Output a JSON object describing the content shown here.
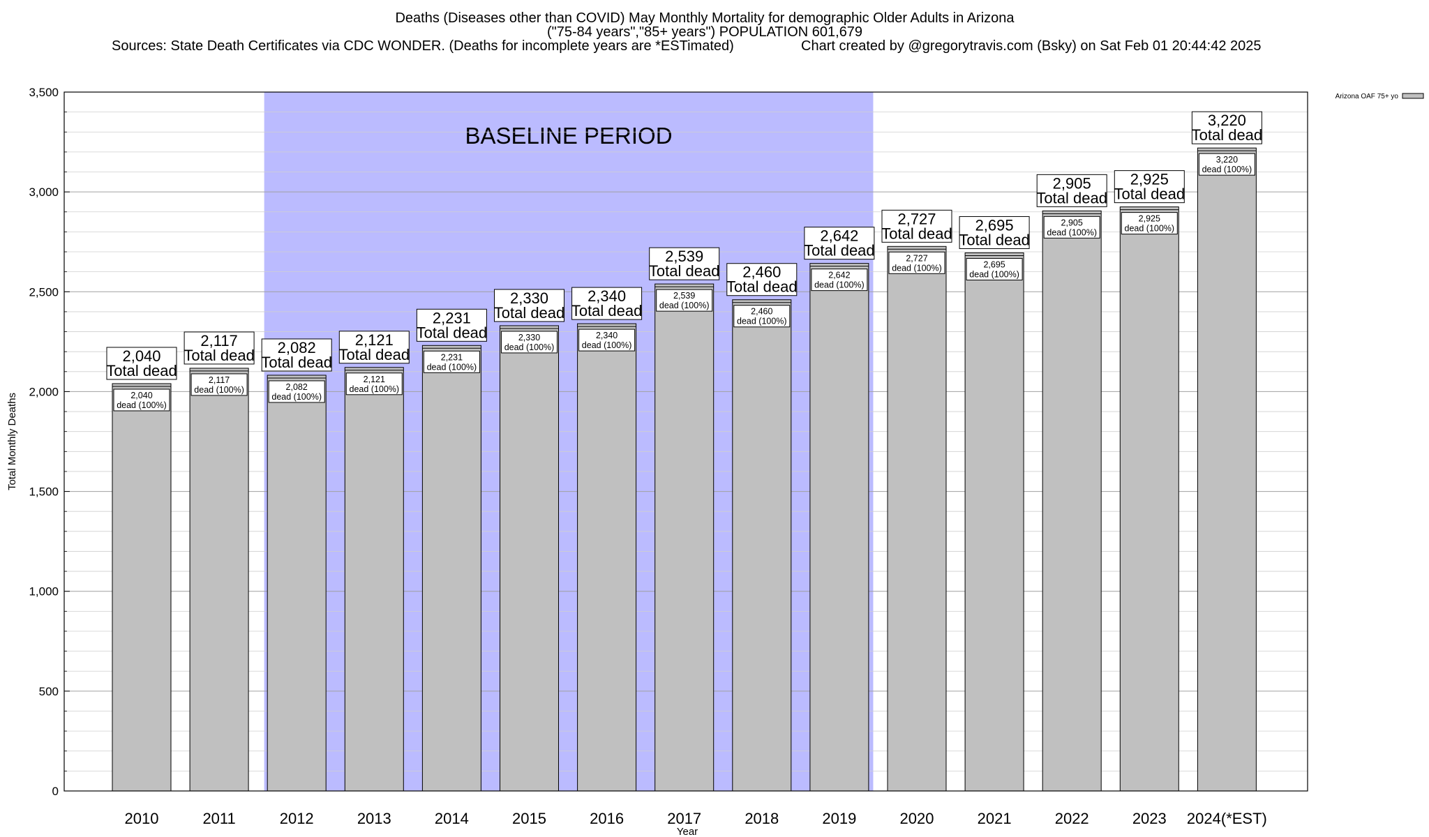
{
  "header": {
    "title_line1": "Deaths (Diseases other than COVID) May Monthly Mortality for demographic Older Adults in Arizona",
    "title_line2": "(\"75-84 years\",\"85+ years\") POPULATION 601,679",
    "sources": "Sources: State Death Certificates via CDC WONDER. (Deaths for incomplete years are *ESTimated)",
    "credit": "Chart created by @gregorytravis.com (Bsky) on Sat Feb 01 20:44:42 2025"
  },
  "chart_data": {
    "type": "bar",
    "categories": [
      "2010",
      "2011",
      "2012",
      "2013",
      "2014",
      "2015",
      "2016",
      "2017",
      "2018",
      "2019",
      "2020",
      "2021",
      "2022",
      "2023",
      "2024(*EST)"
    ],
    "series": [
      {
        "name": "Arizona OAF 75+ yo",
        "values": [
          2040,
          2117,
          2082,
          2121,
          2231,
          2330,
          2340,
          2539,
          2460,
          2642,
          2727,
          2695,
          2905,
          2925,
          3220
        ],
        "color": "#c0c0c0"
      }
    ],
    "value_labels": [
      "2,040",
      "2,117",
      "2,082",
      "2,121",
      "2,231",
      "2,330",
      "2,340",
      "2,539",
      "2,460",
      "2,642",
      "2,727",
      "2,695",
      "2,905",
      "2,925",
      "3,220"
    ],
    "total_label": "Total dead",
    "share_label": "dead (100%)",
    "xlabel": "Year",
    "ylabel": "Total Monthly Deaths",
    "ylim": [
      0,
      3500
    ],
    "yticks": [
      0,
      500,
      1000,
      1500,
      2000,
      2500,
      3000,
      3500
    ],
    "ytick_labels": [
      "0",
      "500",
      "1,000",
      "1,500",
      "2,000",
      "2,500",
      "3,000",
      "3,500"
    ],
    "grid": true,
    "legend_position": "top-right",
    "baseline_period": {
      "label": "BASELINE PERIOD",
      "start": "2012",
      "end": "2019",
      "color": "#bbbbff"
    }
  }
}
